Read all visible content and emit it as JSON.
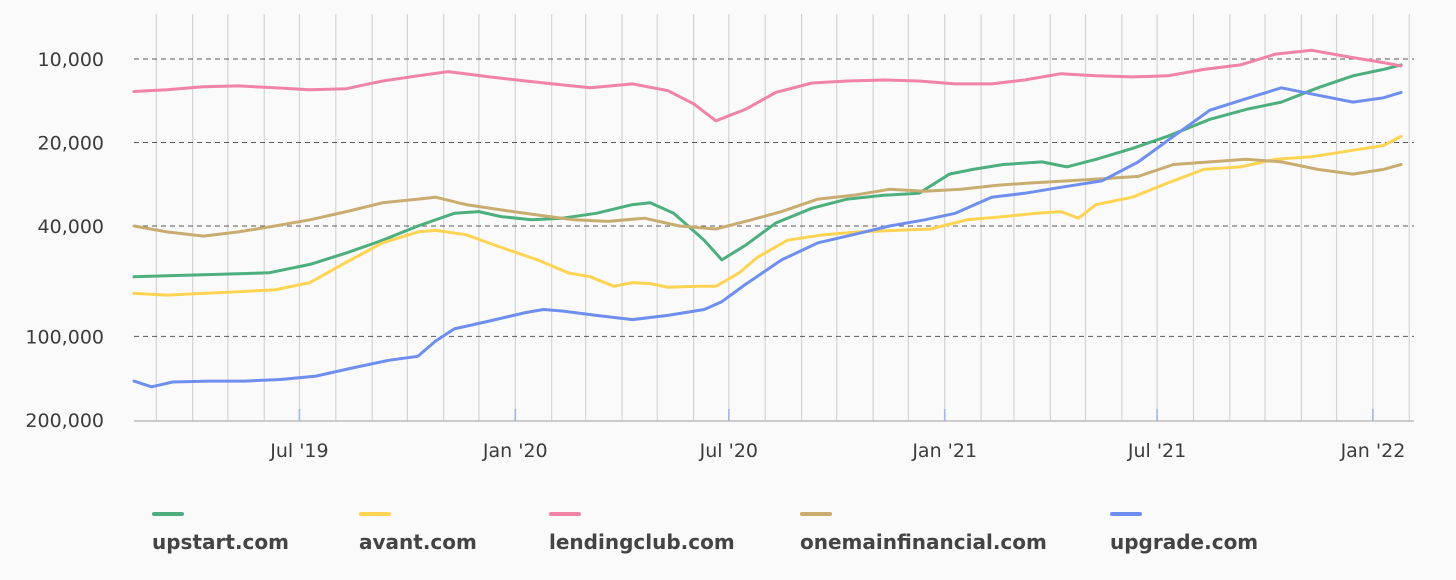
{
  "chart_data": {
    "type": "line",
    "title": "",
    "xlabel": "",
    "ylabel": "",
    "y_scale": "log",
    "y_reversed": true,
    "ylim": [
      200000,
      10000
    ],
    "yticks": [
      {
        "value": 10000,
        "label": "10,000"
      },
      {
        "value": 20000,
        "label": "20,000"
      },
      {
        "value": 40000,
        "label": "40,000"
      },
      {
        "value": 100000,
        "label": "100,000"
      },
      {
        "value": 200000,
        "label": "200,000"
      }
    ],
    "xlim": [
      "2019-02-10",
      "2022-02-05"
    ],
    "xticks": [
      {
        "date": "2019-07-01",
        "label": "Jul '19"
      },
      {
        "date": "2020-01-01",
        "label": "Jan '20"
      },
      {
        "date": "2020-07-01",
        "label": "Jul '20"
      },
      {
        "date": "2021-01-01",
        "label": "Jan '21"
      },
      {
        "date": "2021-07-01",
        "label": "Jul '21"
      },
      {
        "date": "2022-01-01",
        "label": "Jan '22"
      }
    ],
    "grid": true,
    "legend_position": "bottom",
    "series": [
      {
        "name": "upstart.com",
        "color": "#4caf7d",
        "points": [
          [
            "2019-02-10",
            61000
          ],
          [
            "2019-03-10",
            60500
          ],
          [
            "2019-04-10",
            60000
          ],
          [
            "2019-05-10",
            59500
          ],
          [
            "2019-06-05",
            59000
          ],
          [
            "2019-07-10",
            55000
          ],
          [
            "2019-08-10",
            50000
          ],
          [
            "2019-09-10",
            45000
          ],
          [
            "2019-10-10",
            40000
          ],
          [
            "2019-11-10",
            36000
          ],
          [
            "2019-12-01",
            35500
          ],
          [
            "2019-12-20",
            37000
          ],
          [
            "2020-01-15",
            38000
          ],
          [
            "2020-02-10",
            37500
          ],
          [
            "2020-03-10",
            36000
          ],
          [
            "2020-04-10",
            33500
          ],
          [
            "2020-04-25",
            33000
          ],
          [
            "2020-05-15",
            36000
          ],
          [
            "2020-06-10",
            45000
          ],
          [
            "2020-06-25",
            53000
          ],
          [
            "2020-07-15",
            47000
          ],
          [
            "2020-08-10",
            39000
          ],
          [
            "2020-09-10",
            34500
          ],
          [
            "2020-10-10",
            32000
          ],
          [
            "2020-11-10",
            31000
          ],
          [
            "2020-12-10",
            30500
          ],
          [
            "2021-01-05",
            26000
          ],
          [
            "2021-01-25",
            25000
          ],
          [
            "2021-02-20",
            24000
          ],
          [
            "2021-03-25",
            23500
          ],
          [
            "2021-04-15",
            24500
          ],
          [
            "2021-05-10",
            23000
          ],
          [
            "2021-06-10",
            21000
          ],
          [
            "2021-07-10",
            19000
          ],
          [
            "2021-08-15",
            16500
          ],
          [
            "2021-09-15",
            15200
          ],
          [
            "2021-10-15",
            14300
          ],
          [
            "2021-11-15",
            12700
          ],
          [
            "2021-12-15",
            11500
          ],
          [
            "2022-01-10",
            10900
          ],
          [
            "2022-01-25",
            10500
          ]
        ]
      },
      {
        "name": "avant.com",
        "color": "#ffd452",
        "points": [
          [
            "2019-02-10",
            70000
          ],
          [
            "2019-03-10",
            71000
          ],
          [
            "2019-04-10",
            70000
          ],
          [
            "2019-05-10",
            69000
          ],
          [
            "2019-06-10",
            68000
          ],
          [
            "2019-07-10",
            64000
          ],
          [
            "2019-08-10",
            54000
          ],
          [
            "2019-09-10",
            46000
          ],
          [
            "2019-10-10",
            42000
          ],
          [
            "2019-10-25",
            41500
          ],
          [
            "2019-11-20",
            43000
          ],
          [
            "2019-12-15",
            47000
          ],
          [
            "2020-01-20",
            53000
          ],
          [
            "2020-02-15",
            59000
          ],
          [
            "2020-03-05",
            61000
          ],
          [
            "2020-03-25",
            66000
          ],
          [
            "2020-04-10",
            64000
          ],
          [
            "2020-04-25",
            64500
          ],
          [
            "2020-05-10",
            66500
          ],
          [
            "2020-06-05",
            66000
          ],
          [
            "2020-06-20",
            66000
          ],
          [
            "2020-07-10",
            59000
          ],
          [
            "2020-07-25",
            52000
          ],
          [
            "2020-08-20",
            45000
          ],
          [
            "2020-09-20",
            43000
          ],
          [
            "2020-10-20",
            42000
          ],
          [
            "2020-11-20",
            41500
          ],
          [
            "2020-12-20",
            41000
          ],
          [
            "2021-01-20",
            38000
          ],
          [
            "2021-02-20",
            37000
          ],
          [
            "2021-03-20",
            36000
          ],
          [
            "2021-04-10",
            35500
          ],
          [
            "2021-04-25",
            37500
          ],
          [
            "2021-05-10",
            33500
          ],
          [
            "2021-06-10",
            31500
          ],
          [
            "2021-07-10",
            28000
          ],
          [
            "2021-08-10",
            25000
          ],
          [
            "2021-09-10",
            24500
          ],
          [
            "2021-10-10",
            23000
          ],
          [
            "2021-11-10",
            22500
          ],
          [
            "2021-12-10",
            21500
          ],
          [
            "2022-01-10",
            20500
          ],
          [
            "2022-01-25",
            19000
          ]
        ]
      },
      {
        "name": "lendingclub.com",
        "color": "#f083a6",
        "points": [
          [
            "2019-02-10",
            13100
          ],
          [
            "2019-03-10",
            12900
          ],
          [
            "2019-04-10",
            12600
          ],
          [
            "2019-05-10",
            12500
          ],
          [
            "2019-06-10",
            12700
          ],
          [
            "2019-07-10",
            12900
          ],
          [
            "2019-08-10",
            12800
          ],
          [
            "2019-09-10",
            12000
          ],
          [
            "2019-10-10",
            11500
          ],
          [
            "2019-11-05",
            11100
          ],
          [
            "2019-12-10",
            11600
          ],
          [
            "2020-01-10",
            12000
          ],
          [
            "2020-02-10",
            12400
          ],
          [
            "2020-03-05",
            12700
          ],
          [
            "2020-04-10",
            12300
          ],
          [
            "2020-05-10",
            13000
          ],
          [
            "2020-06-01",
            14500
          ],
          [
            "2020-06-20",
            16700
          ],
          [
            "2020-07-15",
            15200
          ],
          [
            "2020-08-10",
            13200
          ],
          [
            "2020-09-10",
            12200
          ],
          [
            "2020-10-10",
            12000
          ],
          [
            "2020-11-10",
            11900
          ],
          [
            "2020-12-10",
            12000
          ],
          [
            "2021-01-10",
            12300
          ],
          [
            "2021-02-10",
            12300
          ],
          [
            "2021-03-10",
            11900
          ],
          [
            "2021-04-10",
            11300
          ],
          [
            "2021-05-10",
            11500
          ],
          [
            "2021-06-10",
            11600
          ],
          [
            "2021-07-10",
            11500
          ],
          [
            "2021-08-10",
            10900
          ],
          [
            "2021-09-10",
            10500
          ],
          [
            "2021-10-10",
            9600
          ],
          [
            "2021-11-10",
            9300
          ],
          [
            "2021-12-10",
            9800
          ],
          [
            "2022-01-10",
            10300
          ],
          [
            "2022-01-25",
            10600
          ]
        ]
      },
      {
        "name": "onemainfinancial.com",
        "color": "#c9ad70",
        "points": [
          [
            "2019-02-10",
            40000
          ],
          [
            "2019-03-10",
            42000
          ],
          [
            "2019-04-10",
            43500
          ],
          [
            "2019-05-10",
            42000
          ],
          [
            "2019-06-10",
            40000
          ],
          [
            "2019-07-10",
            38000
          ],
          [
            "2019-08-10",
            35500
          ],
          [
            "2019-09-10",
            33000
          ],
          [
            "2019-10-10",
            32000
          ],
          [
            "2019-10-25",
            31500
          ],
          [
            "2019-11-20",
            33500
          ],
          [
            "2019-12-20",
            35000
          ],
          [
            "2020-01-20",
            36500
          ],
          [
            "2020-02-20",
            38000
          ],
          [
            "2020-03-20",
            38500
          ],
          [
            "2020-04-20",
            37500
          ],
          [
            "2020-05-20",
            40000
          ],
          [
            "2020-06-20",
            41000
          ],
          [
            "2020-07-15",
            38500
          ],
          [
            "2020-08-15",
            35500
          ],
          [
            "2020-09-15",
            32000
          ],
          [
            "2020-10-15",
            31000
          ],
          [
            "2020-11-15",
            29500
          ],
          [
            "2020-12-15",
            30000
          ],
          [
            "2021-01-15",
            29500
          ],
          [
            "2021-02-15",
            28500
          ],
          [
            "2021-03-15",
            28000
          ],
          [
            "2021-04-15",
            27500
          ],
          [
            "2021-05-15",
            27000
          ],
          [
            "2021-06-15",
            26500
          ],
          [
            "2021-07-15",
            24000
          ],
          [
            "2021-08-15",
            23500
          ],
          [
            "2021-09-15",
            23000
          ],
          [
            "2021-10-15",
            23500
          ],
          [
            "2021-11-15",
            25000
          ],
          [
            "2021-12-15",
            26000
          ],
          [
            "2022-01-10",
            25000
          ],
          [
            "2022-01-25",
            24000
          ]
        ]
      },
      {
        "name": "upgrade.com",
        "color": "#6f8ff0",
        "points": [
          [
            "2019-02-10",
            145000
          ],
          [
            "2019-02-25",
            152000
          ],
          [
            "2019-03-15",
            146000
          ],
          [
            "2019-04-15",
            145000
          ],
          [
            "2019-05-15",
            145000
          ],
          [
            "2019-06-15",
            143000
          ],
          [
            "2019-07-15",
            139000
          ],
          [
            "2019-08-15",
            130000
          ],
          [
            "2019-09-15",
            122000
          ],
          [
            "2019-10-10",
            118000
          ],
          [
            "2019-10-25",
            104000
          ],
          [
            "2019-11-10",
            94000
          ],
          [
            "2019-12-10",
            88000
          ],
          [
            "2020-01-10",
            82000
          ],
          [
            "2020-01-25",
            80000
          ],
          [
            "2020-02-10",
            81000
          ],
          [
            "2020-03-10",
            84000
          ],
          [
            "2020-04-10",
            87000
          ],
          [
            "2020-05-10",
            84000
          ],
          [
            "2020-06-10",
            80000
          ],
          [
            "2020-06-25",
            75000
          ],
          [
            "2020-07-15",
            65000
          ],
          [
            "2020-08-15",
            53000
          ],
          [
            "2020-09-15",
            46000
          ],
          [
            "2020-10-15",
            43000
          ],
          [
            "2020-11-15",
            40000
          ],
          [
            "2020-12-15",
            38000
          ],
          [
            "2021-01-10",
            36000
          ],
          [
            "2021-02-10",
            31500
          ],
          [
            "2021-03-10",
            30500
          ],
          [
            "2021-04-10",
            29000
          ],
          [
            "2021-05-15",
            27500
          ],
          [
            "2021-06-15",
            23500
          ],
          [
            "2021-07-15",
            19000
          ],
          [
            "2021-08-15",
            15300
          ],
          [
            "2021-09-15",
            13900
          ],
          [
            "2021-10-15",
            12700
          ],
          [
            "2021-11-15",
            13500
          ],
          [
            "2021-12-15",
            14300
          ],
          [
            "2022-01-10",
            13800
          ],
          [
            "2022-01-25",
            13200
          ]
        ]
      }
    ]
  }
}
